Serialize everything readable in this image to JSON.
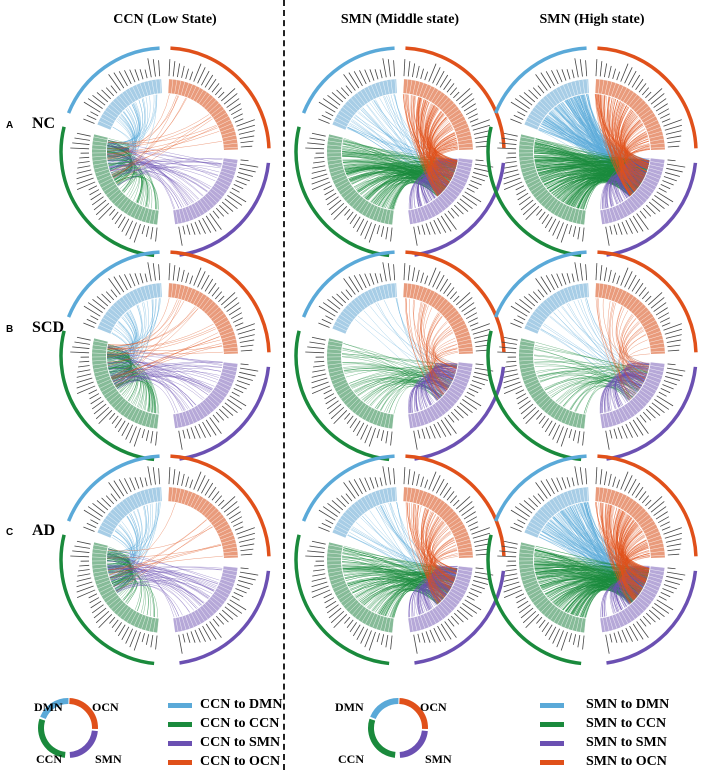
{
  "columns": [
    "CCN (Low State)",
    "SMN (Middle state)",
    "SMN (High state)"
  ],
  "rows": [
    {
      "letter": "A",
      "group": "NC"
    },
    {
      "letter": "B",
      "group": "SCD"
    },
    {
      "letter": "C",
      "group": "AD"
    }
  ],
  "colors": {
    "DMN": "#5aa9d8",
    "CCN": "#1a8a3c",
    "SMN": "#6b50b2",
    "OCN": "#e0501a",
    "DMN_bar": "#a7cde6",
    "CCN_bar": "#86bb98",
    "SMN_bar": "#b6a8d8",
    "OCN_bar": "#e99b7c"
  },
  "sources": [
    "CCN",
    "SMN",
    "SMN"
  ],
  "connection_counts_estimate": [
    [
      {
        "DMN": 40,
        "CCN": 80,
        "SMN": 40,
        "OCN": 15
      },
      {
        "DMN": 40,
        "CCN": 200,
        "SMN": 120,
        "OCN": 150
      },
      {
        "DMN": 200,
        "CCN": 300,
        "SMN": 120,
        "OCN": 150
      }
    ],
    [
      {
        "DMN": 40,
        "CCN": 90,
        "SMN": 40,
        "OCN": 20
      },
      {
        "DMN": 10,
        "CCN": 60,
        "SMN": 100,
        "OCN": 40
      },
      {
        "DMN": 20,
        "CCN": 50,
        "SMN": 80,
        "OCN": 30
      }
    ],
    [
      {
        "DMN": 40,
        "CCN": 70,
        "SMN": 40,
        "OCN": 10
      },
      {
        "DMN": 30,
        "CCN": 150,
        "SMN": 120,
        "OCN": 80
      },
      {
        "DMN": 150,
        "CCN": 250,
        "SMN": 100,
        "OCN": 150
      }
    ]
  ],
  "legend": {
    "donut_labels": {
      "DMN": "DMN",
      "OCN": "OCN",
      "CCN": "CCN",
      "SMN": "SMN"
    },
    "left": [
      "CCN to DMN",
      "CCN to CCN",
      "CCN to SMN",
      "CCN to OCN"
    ],
    "right": [
      "SMN to DMN",
      "SMN to CCN",
      "SMN to SMN",
      "SMN to OCN"
    ]
  }
}
